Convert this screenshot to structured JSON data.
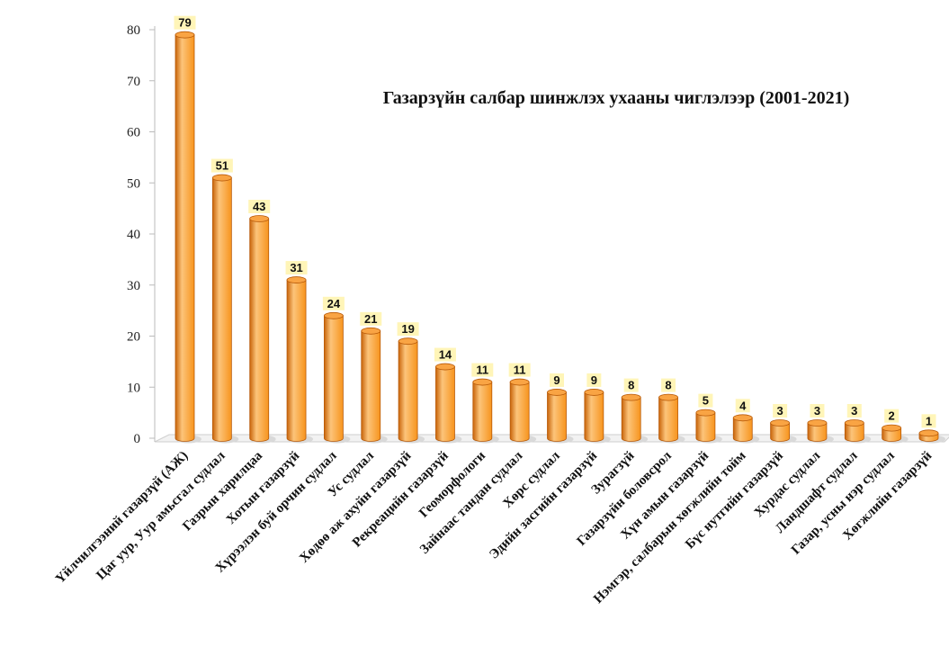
{
  "chart_data": {
    "type": "bar",
    "title": "Газарзүйн салбар шинжлэх ухааны чиглэлээр  (2001-2021)",
    "xlabel": "",
    "ylabel": "",
    "ylim": [
      0,
      80
    ],
    "yticks": [
      "0",
      "10",
      "20",
      "30",
      "40",
      "50",
      "60",
      "70",
      "80"
    ],
    "categories": [
      "Үйлчилгээний газарзүй (АЖ)",
      "Цаг уур, Уур амьсгал судлал",
      "Газрын харилцаа",
      "Хотын газарзүй",
      "Хүрээлэн буй орчин судлал",
      "Ус судлал",
      "Хөдөө аж ахуйн газарзүй",
      "Рекреацийн газарзүй",
      "Геоморфологи",
      "Зайнаас тандан судлал",
      "Хөрс судлал",
      "Эдийн засгийн газарзүй",
      "Зурагзүй",
      "Газарзүйн боловсрол",
      "Хүн амын газарзүй",
      "Нэмгэр, салбарын хөгжлийн тойм",
      "Бүс нутгийн газарзүй",
      "Хурдас судлал",
      "Ландшафт судлал",
      "Газар, усны нэр судлал",
      "Хөгжлийн газарзүй"
    ],
    "values": [
      79,
      51,
      43,
      31,
      24,
      21,
      19,
      14,
      11,
      11,
      9,
      9,
      8,
      8,
      5,
      4,
      3,
      3,
      3,
      2,
      1
    ],
    "bar_color": "#f7941d",
    "bar_highlight": "#fcc47a",
    "bar_shadow": "#c8640a",
    "label_bg": "#fff5b8",
    "grid": false,
    "legend": "none"
  }
}
